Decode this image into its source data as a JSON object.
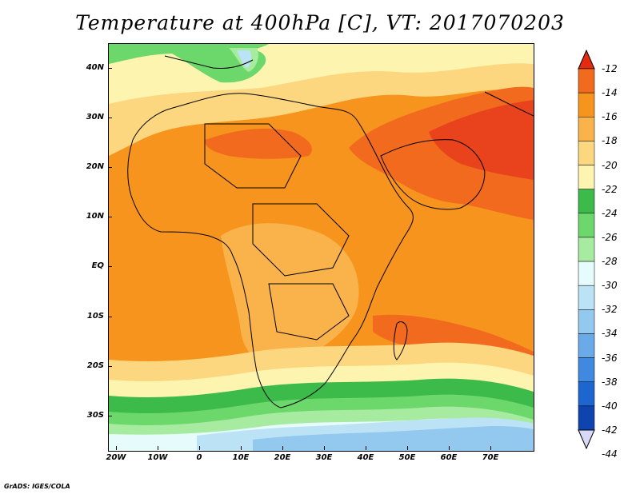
{
  "title": "Temperature at 400hPa [C], VT: 2017070203",
  "credit": "GrADS: IGES/COLA",
  "lat_labels": [
    "40N",
    "30N",
    "20N",
    "10N",
    "EQ",
    "10S",
    "20S",
    "30S"
  ],
  "lon_labels": [
    "20W",
    "10W",
    "0",
    "10E",
    "20E",
    "30E",
    "40E",
    "50E",
    "60E",
    "70E"
  ],
  "colorbar": {
    "labels": [
      "-12",
      "-14",
      "-16",
      "-18",
      "-20",
      "-22",
      "-24",
      "-26",
      "-28",
      "-30",
      "-32",
      "-34",
      "-36",
      "-38",
      "-40",
      "-42",
      "-44"
    ],
    "colors": [
      "#e8431c",
      "#f26a1e",
      "#f7941d",
      "#f9b34a",
      "#fcd77f",
      "#fdf4b0",
      "#3dbb4a",
      "#6cd76a",
      "#a6eba0",
      "#e6fbfb",
      "#bce3f5",
      "#93c8ef",
      "#6aaae8",
      "#3f8ae0",
      "#1e66cf",
      "#0f44b0",
      "#0a1a7a"
    ],
    "top_arrow_color": "#e42b0f",
    "bottom_arrow_color": "#d8d8f8"
  },
  "colors": {
    "ocean_warm": "#f7941d",
    "land_mid": "#f9b34a",
    "hot_core": "#e8431c",
    "hot_mid": "#f26a1e",
    "cool_yellow": "#fdf4b0",
    "pale_yellow": "#fcd77f",
    "green_dark": "#3dbb4a",
    "green_mid": "#6cd76a",
    "green_light": "#a6eba0",
    "cyan_pale": "#e6fbfb",
    "blue_light": "#bce3f5",
    "blue_mid": "#93c8ef"
  }
}
